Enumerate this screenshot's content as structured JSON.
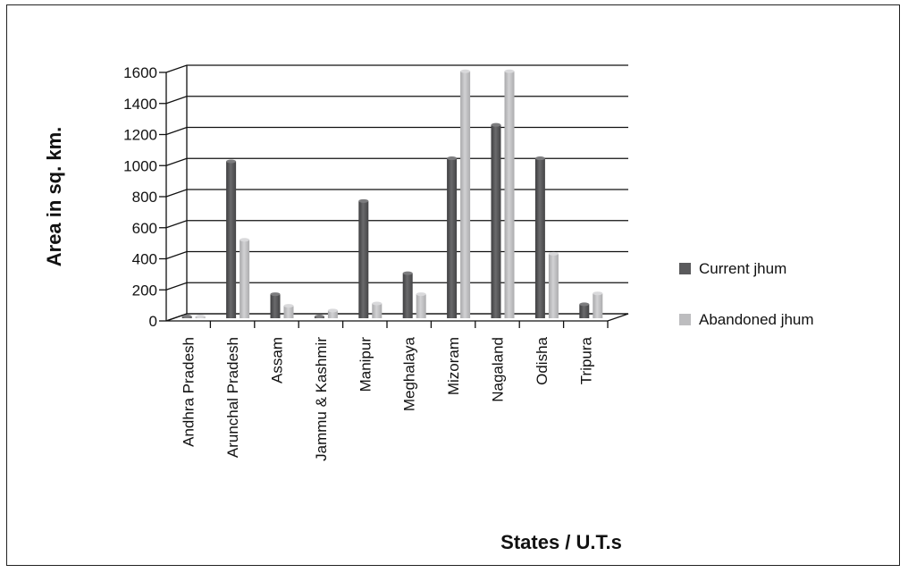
{
  "chart_data": {
    "type": "bar",
    "xlabel": "States / U.T.s",
    "ylabel": "Area in sq. km.",
    "ylim": [
      0,
      1600
    ],
    "yticks": [
      0,
      200,
      400,
      600,
      800,
      1000,
      1200,
      1400,
      1600
    ],
    "grid": true,
    "legend_position": "right",
    "categories": [
      "Andhra Pradesh",
      "Arunchal Pradesh",
      "Assam",
      "Jammu & Kashmir",
      "Manipur",
      "Meghalaya",
      "Mizoram",
      "Nagaland",
      "Odisha",
      "Tripura"
    ],
    "series": [
      {
        "name": "Current jhum",
        "color": "#5a5a5c",
        "values": [
          8,
          1010,
          155,
          10,
          755,
          290,
          1030,
          1245,
          1030,
          90
        ]
      },
      {
        "name": "Abandoned jhum",
        "color": "#bdbdbf",
        "values": [
          8,
          505,
          80,
          50,
          95,
          155,
          1590,
          1590,
          415,
          160
        ]
      }
    ]
  }
}
